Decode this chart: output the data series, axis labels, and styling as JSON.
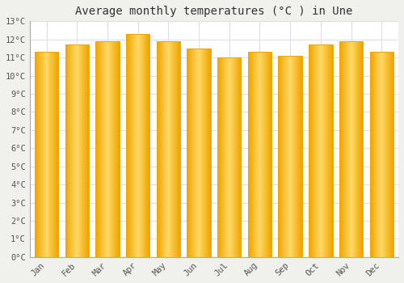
{
  "title": "Average monthly temperatures (°C ) in Une",
  "months": [
    "Jan",
    "Feb",
    "Mar",
    "Apr",
    "May",
    "Jun",
    "Jul",
    "Aug",
    "Sep",
    "Oct",
    "Nov",
    "Dec"
  ],
  "values": [
    11.3,
    11.7,
    11.9,
    12.3,
    11.9,
    11.5,
    11.0,
    11.3,
    11.1,
    11.7,
    11.9,
    11.3
  ],
  "ylim": [
    0,
    13
  ],
  "yticks": [
    0,
    1,
    2,
    3,
    4,
    5,
    6,
    7,
    8,
    9,
    10,
    11,
    12,
    13
  ],
  "bar_color_center": "#FFD966",
  "bar_color_edge": "#F0A500",
  "background_color": "#F0F0EC",
  "plot_bg_color": "#FFFFFF",
  "grid_color": "#DDDDEE",
  "title_fontsize": 10,
  "tick_fontsize": 7.5,
  "font_family": "monospace"
}
